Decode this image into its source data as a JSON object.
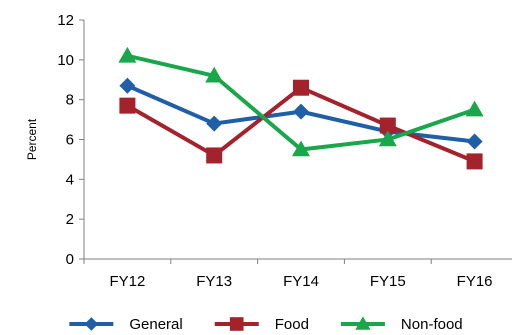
{
  "chart_data": {
    "type": "line",
    "categories": [
      "FY12",
      "FY13",
      "FY14",
      "FY15",
      "FY16"
    ],
    "ylabel": "Percent",
    "ylim": [
      0,
      12
    ],
    "yticks": [
      0,
      2,
      4,
      6,
      8,
      10,
      12
    ],
    "grid": false,
    "legend_position": "bottom",
    "series": [
      {
        "name": "General",
        "values": [
          8.7,
          6.8,
          7.4,
          6.4,
          5.9
        ],
        "color": "#1f5fa8",
        "marker": "diamond"
      },
      {
        "name": "Food",
        "values": [
          7.7,
          5.2,
          8.6,
          6.7,
          4.9
        ],
        "color": "#a3222b",
        "marker": "square"
      },
      {
        "name": "Non-food",
        "values": [
          10.2,
          9.2,
          5.5,
          6.0,
          7.5
        ],
        "color": "#1aa64a",
        "marker": "triangle"
      }
    ]
  }
}
